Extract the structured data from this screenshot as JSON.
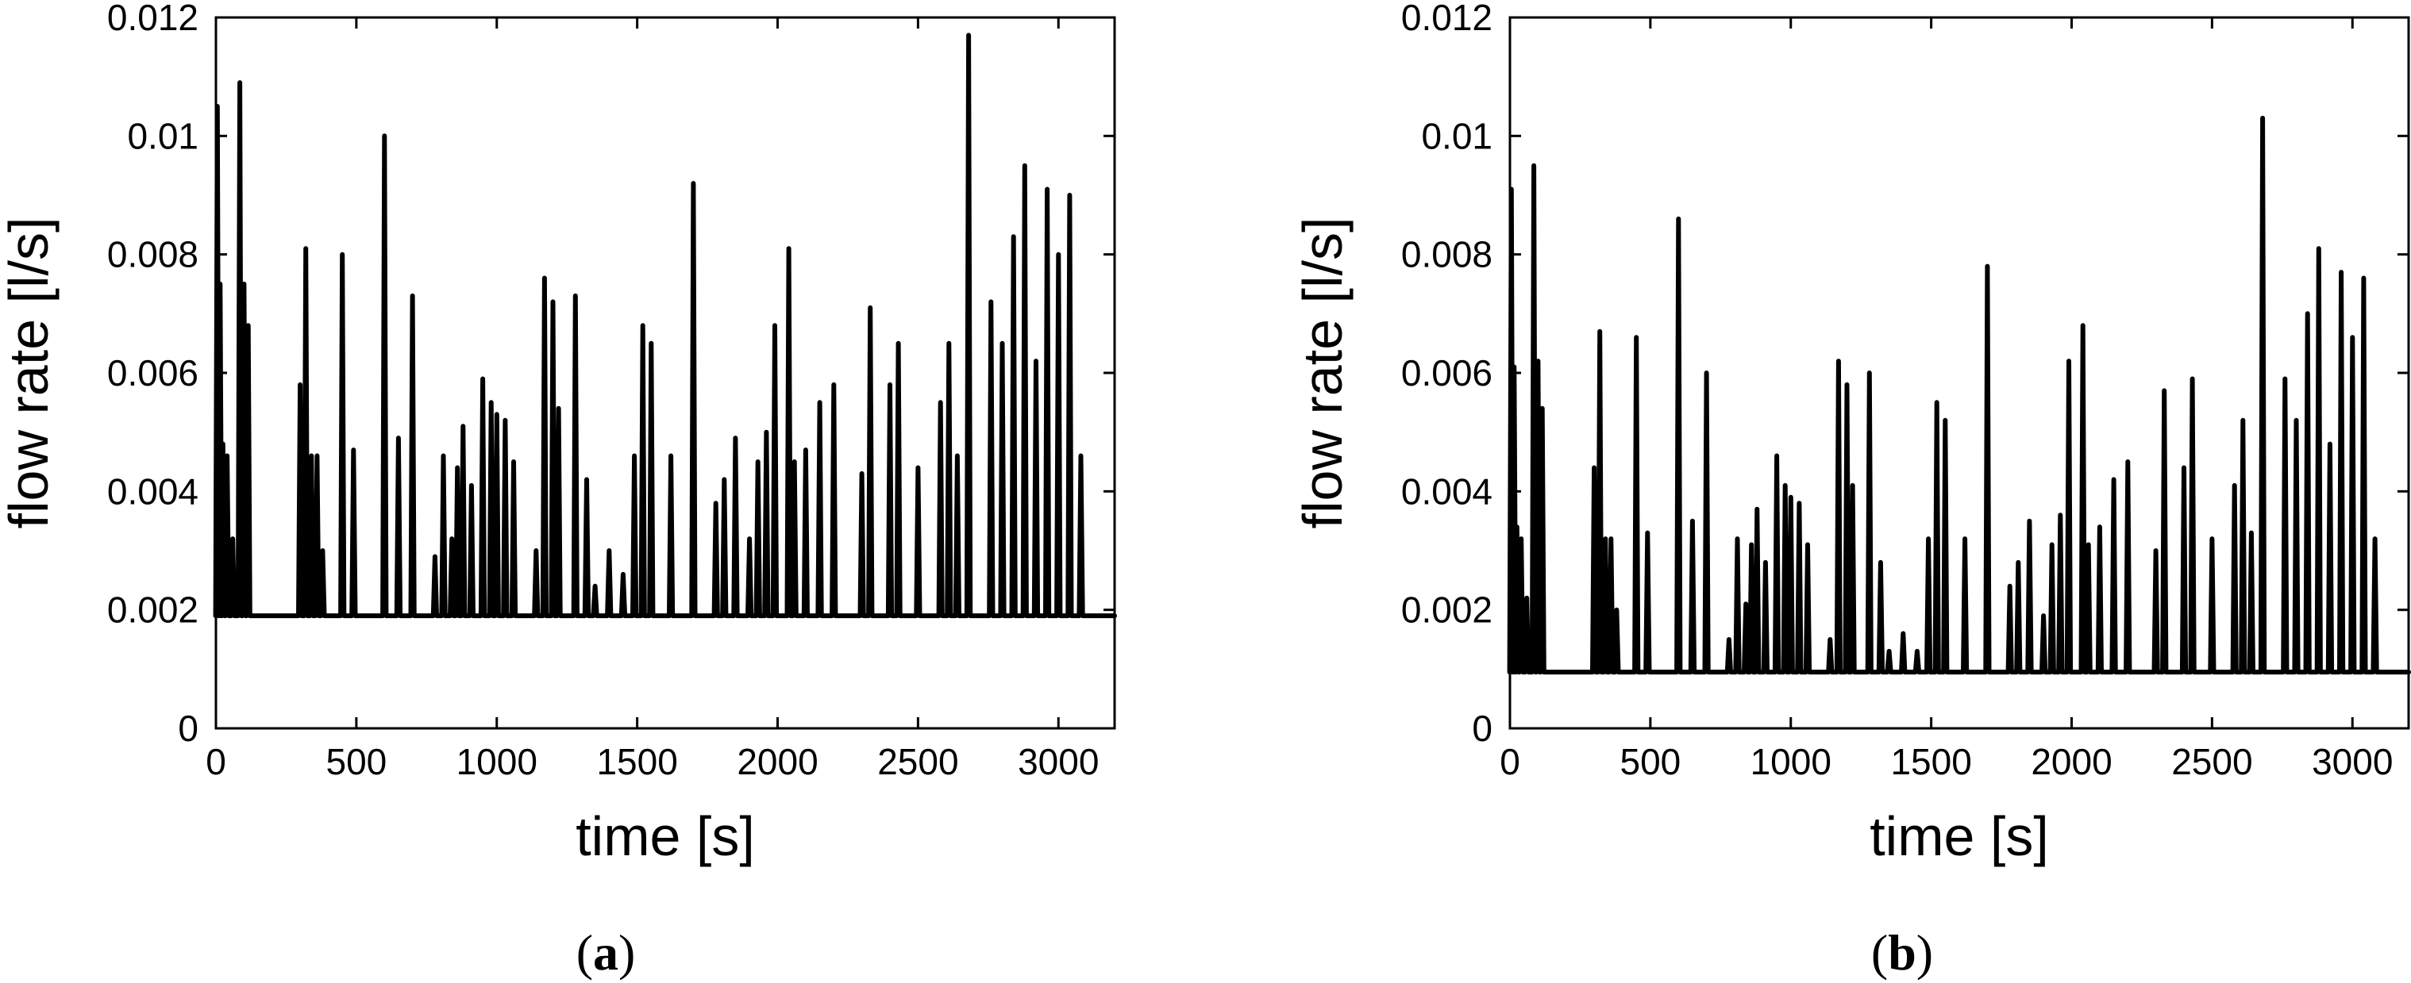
{
  "chart_data": [
    {
      "type": "line",
      "caption": {
        "open": "(",
        "letter": "a",
        "close": ")"
      },
      "xlabel": "time [s]",
      "ylabel": "flow rate [l/s]",
      "xlim": [
        0,
        3200
      ],
      "ylim": [
        0,
        0.012
      ],
      "xticks": [
        0,
        500,
        1000,
        1500,
        2000,
        2500,
        3000
      ],
      "yticks": [
        0,
        0.002,
        0.004,
        0.006,
        0.008,
        0.01,
        0.012
      ],
      "xtick_labels": [
        "0",
        "500",
        "1000",
        "1500",
        "2000",
        "2500",
        "3000"
      ],
      "ytick_labels": [
        "0",
        "0.002",
        "0.004",
        "0.006",
        "0.008",
        "0.01",
        "0.012"
      ],
      "grid": false,
      "baseline": 0.0019,
      "x_end": 3200,
      "series": [
        {
          "color": "#000000",
          "peaks": [
            [
              5,
              0.0105
            ],
            [
              15,
              0.0075
            ],
            [
              25,
              0.0048
            ],
            [
              40,
              0.0046
            ],
            [
              60,
              0.0032
            ],
            [
              85,
              0.0109
            ],
            [
              100,
              0.0075
            ],
            [
              115,
              0.0068
            ],
            [
              300,
              0.0058
            ],
            [
              320,
              0.0081
            ],
            [
              340,
              0.0046
            ],
            [
              360,
              0.0046
            ],
            [
              380,
              0.003
            ],
            [
              450,
              0.008
            ],
            [
              490,
              0.0047
            ],
            [
              600,
              0.01
            ],
            [
              650,
              0.0049
            ],
            [
              700,
              0.0073
            ],
            [
              780,
              0.0029
            ],
            [
              810,
              0.0046
            ],
            [
              840,
              0.0032
            ],
            [
              860,
              0.0044
            ],
            [
              880,
              0.0051
            ],
            [
              910,
              0.0041
            ],
            [
              950,
              0.0059
            ],
            [
              980,
              0.0055
            ],
            [
              1000,
              0.0053
            ],
            [
              1030,
              0.0052
            ],
            [
              1060,
              0.0045
            ],
            [
              1140,
              0.003
            ],
            [
              1170,
              0.0076
            ],
            [
              1200,
              0.0072
            ],
            [
              1220,
              0.0054
            ],
            [
              1280,
              0.0073
            ],
            [
              1320,
              0.0042
            ],
            [
              1350,
              0.0024
            ],
            [
              1400,
              0.003
            ],
            [
              1450,
              0.0026
            ],
            [
              1490,
              0.0046
            ],
            [
              1520,
              0.0068
            ],
            [
              1550,
              0.0065
            ],
            [
              1620,
              0.0046
            ],
            [
              1700,
              0.0092
            ],
            [
              1780,
              0.0038
            ],
            [
              1810,
              0.0042
            ],
            [
              1850,
              0.0049
            ],
            [
              1900,
              0.0032
            ],
            [
              1930,
              0.0045
            ],
            [
              1960,
              0.005
            ],
            [
              1990,
              0.0068
            ],
            [
              2040,
              0.0081
            ],
            [
              2060,
              0.0045
            ],
            [
              2100,
              0.0047
            ],
            [
              2150,
              0.0055
            ],
            [
              2200,
              0.0058
            ],
            [
              2300,
              0.0043
            ],
            [
              2330,
              0.0071
            ],
            [
              2400,
              0.0058
            ],
            [
              2430,
              0.0065
            ],
            [
              2500,
              0.0044
            ],
            [
              2580,
              0.0055
            ],
            [
              2610,
              0.0065
            ],
            [
              2640,
              0.0046
            ],
            [
              2680,
              0.0117
            ],
            [
              2760,
              0.0072
            ],
            [
              2800,
              0.0065
            ],
            [
              2840,
              0.0083
            ],
            [
              2880,
              0.0095
            ],
            [
              2920,
              0.0062
            ],
            [
              2960,
              0.0091
            ],
            [
              3000,
              0.008
            ],
            [
              3040,
              0.009
            ],
            [
              3080,
              0.0046
            ]
          ]
        }
      ]
    },
    {
      "type": "line",
      "caption": {
        "open": "(",
        "letter": "b",
        "close": ")"
      },
      "xlabel": "time [s]",
      "ylabel": "flow rate [l/s]",
      "xlim": [
        0,
        3200
      ],
      "ylim": [
        0,
        0.012
      ],
      "xticks": [
        0,
        500,
        1000,
        1500,
        2000,
        2500,
        3000
      ],
      "yticks": [
        0,
        0.002,
        0.004,
        0.006,
        0.008,
        0.01,
        0.012
      ],
      "xtick_labels": [
        "0",
        "500",
        "1000",
        "1500",
        "2000",
        "2500",
        "3000"
      ],
      "ytick_labels": [
        "0",
        "0.002",
        "0.004",
        "0.006",
        "0.008",
        "0.01",
        "0.012"
      ],
      "grid": false,
      "baseline": 0.00095,
      "x_end": 3200,
      "series": [
        {
          "color": "#000000",
          "peaks": [
            [
              5,
              0.0091
            ],
            [
              15,
              0.0061
            ],
            [
              25,
              0.0034
            ],
            [
              40,
              0.0032
            ],
            [
              60,
              0.0022
            ],
            [
              85,
              0.0095
            ],
            [
              100,
              0.0062
            ],
            [
              115,
              0.0054
            ],
            [
              300,
              0.0044
            ],
            [
              320,
              0.0067
            ],
            [
              340,
              0.0032
            ],
            [
              360,
              0.0032
            ],
            [
              380,
              0.002
            ],
            [
              450,
              0.0066
            ],
            [
              490,
              0.0033
            ],
            [
              600,
              0.0086
            ],
            [
              650,
              0.0035
            ],
            [
              700,
              0.006
            ],
            [
              780,
              0.0015
            ],
            [
              810,
              0.0032
            ],
            [
              840,
              0.0021
            ],
            [
              860,
              0.0031
            ],
            [
              880,
              0.0037
            ],
            [
              910,
              0.0028
            ],
            [
              950,
              0.0046
            ],
            [
              980,
              0.0041
            ],
            [
              1000,
              0.0039
            ],
            [
              1030,
              0.0038
            ],
            [
              1060,
              0.0031
            ],
            [
              1140,
              0.0015
            ],
            [
              1170,
              0.0062
            ],
            [
              1200,
              0.0058
            ],
            [
              1220,
              0.0041
            ],
            [
              1280,
              0.006
            ],
            [
              1320,
              0.0028
            ],
            [
              1350,
              0.0013
            ],
            [
              1400,
              0.0016
            ],
            [
              1450,
              0.0013
            ],
            [
              1490,
              0.0032
            ],
            [
              1520,
              0.0055
            ],
            [
              1550,
              0.0052
            ],
            [
              1620,
              0.0032
            ],
            [
              1700,
              0.0078
            ],
            [
              1780,
              0.0024
            ],
            [
              1810,
              0.0028
            ],
            [
              1850,
              0.0035
            ],
            [
              1900,
              0.0019
            ],
            [
              1930,
              0.0031
            ],
            [
              1960,
              0.0036
            ],
            [
              1990,
              0.0062
            ],
            [
              2040,
              0.0068
            ],
            [
              2060,
              0.0031
            ],
            [
              2100,
              0.0034
            ],
            [
              2150,
              0.0042
            ],
            [
              2200,
              0.0045
            ],
            [
              2300,
              0.003
            ],
            [
              2330,
              0.0057
            ],
            [
              2400,
              0.0044
            ],
            [
              2430,
              0.0059
            ],
            [
              2500,
              0.0032
            ],
            [
              2580,
              0.0041
            ],
            [
              2610,
              0.0052
            ],
            [
              2640,
              0.0033
            ],
            [
              2680,
              0.0103
            ],
            [
              2760,
              0.0059
            ],
            [
              2800,
              0.0052
            ],
            [
              2840,
              0.007
            ],
            [
              2880,
              0.0081
            ],
            [
              2920,
              0.0048
            ],
            [
              2960,
              0.0077
            ],
            [
              3000,
              0.0066
            ],
            [
              3040,
              0.0076
            ],
            [
              3080,
              0.0032
            ]
          ]
        }
      ]
    }
  ]
}
